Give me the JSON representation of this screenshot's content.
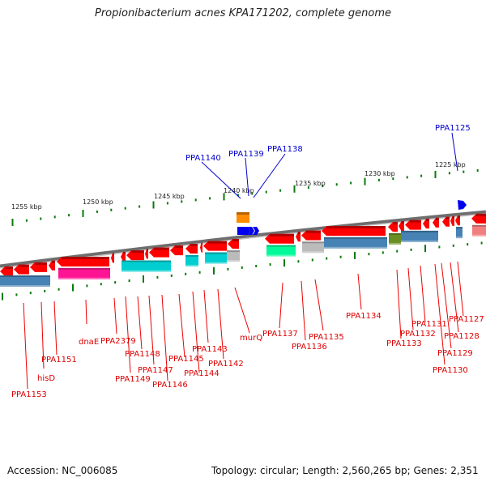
{
  "title": "Propionibacterium acnes KPA171202, complete genome",
  "footer": {
    "accession": "Accession: NC_006085",
    "topology": "Topology: circular; Length: 2,560,265 bp; Genes: 2,351"
  },
  "colors": {
    "backbone": "#808080",
    "forward_gene": "#0000ee",
    "reverse_gene": "#ff0000",
    "tick": "#0a7a0a",
    "forward_label": "#0000cc",
    "reverse_label": "#dd0000",
    "cog_orange": "#ff8c00",
    "cog_blue": "#4682b4",
    "cog_magenta": "#ff1493",
    "cog_cyan": "#00ced1",
    "cog_grey": "#bbbbbb",
    "cog_green": "#00fa9a",
    "cog_olive": "#6b8e23",
    "cog_pink": "#f08080"
  },
  "scale_labels": [
    {
      "text": "1255 kbp"
    },
    {
      "text": "1250 kbp"
    },
    {
      "text": "1245 kbp"
    },
    {
      "text": "1240 kbp"
    },
    {
      "text": "1235 kbp"
    },
    {
      "text": "1230 kbp"
    },
    {
      "text": "1225 kbp"
    }
  ],
  "forward_labels": [
    {
      "text": "PPA1140"
    },
    {
      "text": "PPA1139"
    },
    {
      "text": "PPA1138"
    },
    {
      "text": "PPA1125"
    }
  ],
  "reverse_labels": [
    {
      "text": "PPA1153"
    },
    {
      "text": "hisD"
    },
    {
      "text": "PPA1151"
    },
    {
      "text": "dnaE"
    },
    {
      "text": "PPA2379"
    },
    {
      "text": "PPA1149"
    },
    {
      "text": "PPA1148"
    },
    {
      "text": "PPA1147"
    },
    {
      "text": "PPA1146"
    },
    {
      "text": "PPA1145"
    },
    {
      "text": "PPA1144"
    },
    {
      "text": "PPA1143"
    },
    {
      "text": "PPA1142"
    },
    {
      "text": "murQ"
    },
    {
      "text": "PPA1137"
    },
    {
      "text": "PPA1136"
    },
    {
      "text": "PPA1135"
    },
    {
      "text": "PPA1134"
    },
    {
      "text": "PPA1133"
    },
    {
      "text": "PPA1132"
    },
    {
      "text": "PPA1131"
    },
    {
      "text": "PPA1130"
    },
    {
      "text": "PPA1129"
    },
    {
      "text": "PPA1128"
    },
    {
      "text": "PPA1127"
    }
  ]
}
